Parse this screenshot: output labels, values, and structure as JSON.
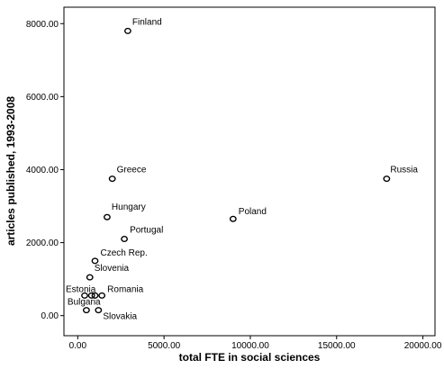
{
  "chart_data": {
    "type": "scatter",
    "title": "",
    "xlabel": "total FTE in social sciences",
    "ylabel": "articles published, 1993-2008",
    "xlim": [
      -800,
      20700
    ],
    "ylim": [
      -550,
      8450
    ],
    "x_ticks": [
      0,
      5000,
      10000,
      15000,
      20000
    ],
    "x_tick_labels": [
      "0.00",
      "5000.00",
      "10000.00",
      "15000.00",
      "20000.00"
    ],
    "y_ticks": [
      0,
      2000,
      4000,
      6000,
      8000
    ],
    "y_tick_labels": [
      "0.00",
      "2000.00",
      "4000.00",
      "6000.00",
      "8000.00"
    ],
    "grid": false,
    "legend": "none",
    "marker": "open-circle",
    "marker_color": "#000000",
    "points": [
      {
        "label": "Finland",
        "x": 2900,
        "y": 7800
      },
      {
        "label": "Greece",
        "x": 2000,
        "y": 3750
      },
      {
        "label": "Russia",
        "x": 17900,
        "y": 3750
      },
      {
        "label": "Hungary",
        "x": 1700,
        "y": 2700
      },
      {
        "label": "Poland",
        "x": 9000,
        "y": 2650
      },
      {
        "label": "Portugal",
        "x": 2700,
        "y": 2100
      },
      {
        "label": "Czech Rep.",
        "x": 1000,
        "y": 1500
      },
      {
        "label": "Slovenia",
        "x": 700,
        "y": 1050
      },
      {
        "label": "Estonia",
        "x": 400,
        "y": 550
      },
      {
        "label": "",
        "x": 800,
        "y": 550
      },
      {
        "label": "",
        "x": 1000,
        "y": 550
      },
      {
        "label": "Romania",
        "x": 1400,
        "y": 550
      },
      {
        "label": "Bulgaria",
        "x": 500,
        "y": 150
      },
      {
        "label": "Slovakia",
        "x": 1200,
        "y": 150
      }
    ]
  }
}
